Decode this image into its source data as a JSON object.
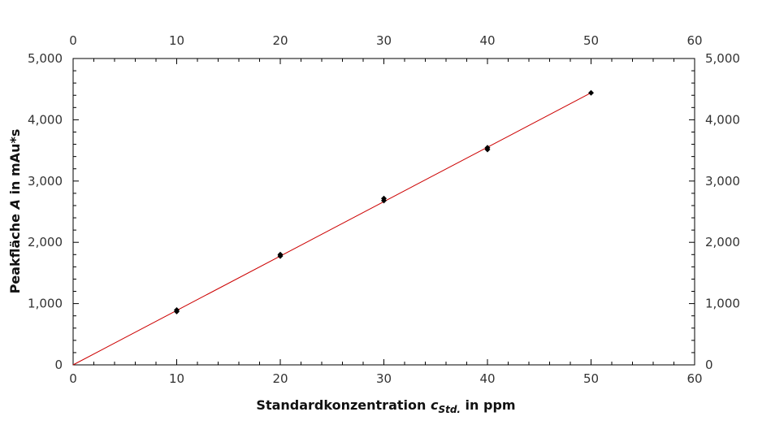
{
  "chart_data": {
    "type": "scatter",
    "xlabel": {
      "prefix": "Standardkonzentration ",
      "symbol": "c",
      "subscript": "Std.",
      "suffix": " in ppm"
    },
    "ylabel": {
      "prefix": "Peakfläche ",
      "symbol": "A",
      "suffix": " in mAu*s"
    },
    "xlim": [
      0,
      60
    ],
    "ylim": [
      0,
      5000
    ],
    "x_ticks": [
      "0",
      "10",
      "20",
      "30",
      "40",
      "50",
      "60"
    ],
    "y_ticks": [
      "0",
      "1,000",
      "2,000",
      "3,000",
      "4,000",
      "5,000"
    ],
    "series": [
      {
        "points": [
          {
            "x": 10,
            "y": 870
          },
          {
            "x": 10,
            "y": 895
          },
          {
            "x": 20,
            "y": 1775
          },
          {
            "x": 20,
            "y": 1800
          },
          {
            "x": 30,
            "y": 2680
          },
          {
            "x": 30,
            "y": 2715
          },
          {
            "x": 40,
            "y": 3515
          },
          {
            "x": 40,
            "y": 3545
          },
          {
            "x": 50,
            "y": 4440
          }
        ]
      }
    ],
    "fit_line": {
      "x": [
        0,
        50
      ],
      "y": [
        0,
        4440
      ],
      "color": "#cc0000"
    },
    "marker_color": "#000000",
    "grid": false,
    "mirror_axes": true
  }
}
